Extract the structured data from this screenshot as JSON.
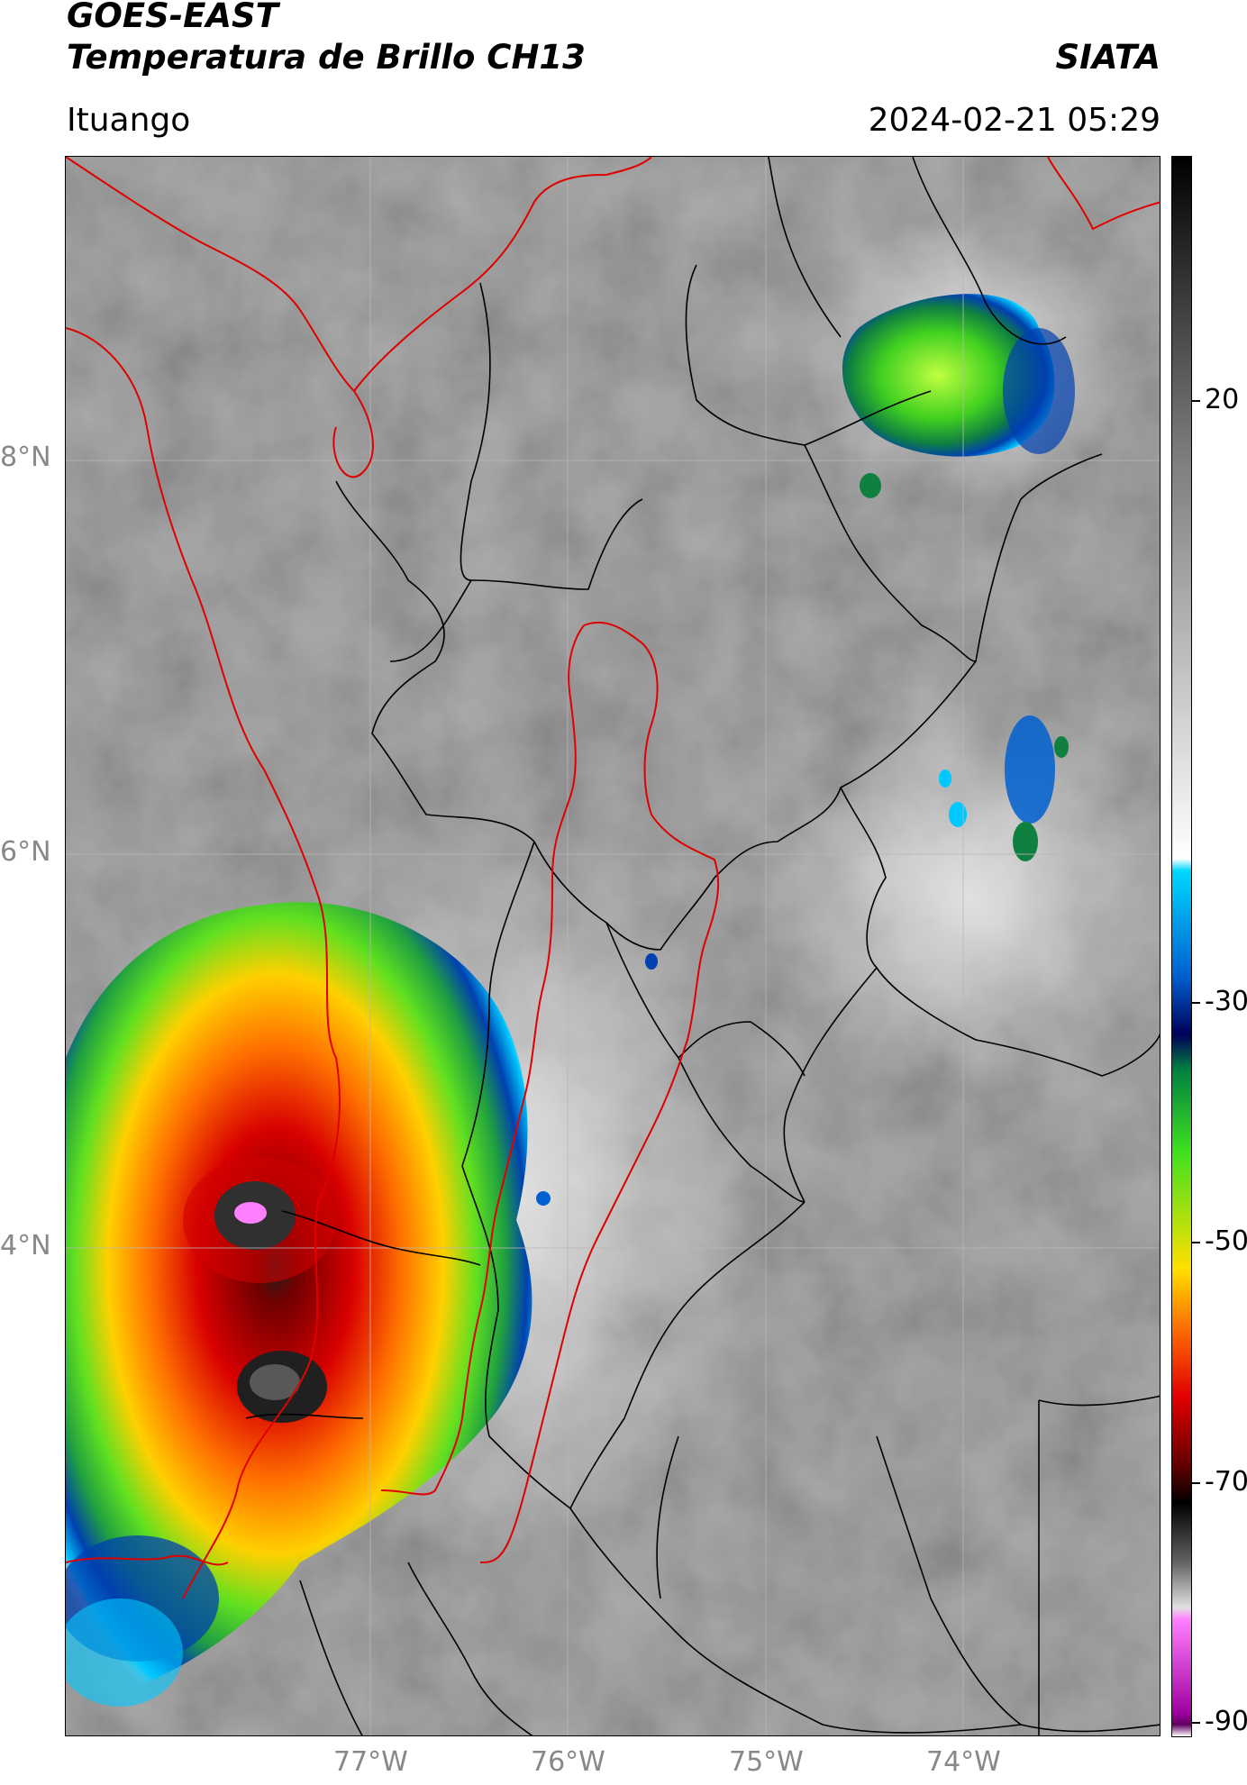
{
  "header": {
    "satellite": "GOES-EAST",
    "product": "Temperatura de Brillo CH13",
    "agency": "SIATA",
    "region": "Ituango",
    "timestamp": "2024-02-21 05:29"
  },
  "map": {
    "lat_labels": [
      "8°N",
      "6°N",
      "4°N"
    ],
    "lon_labels": [
      "77°W",
      "76°W",
      "75°W",
      "74°W"
    ],
    "colors": {
      "background_gray": "#8c8c8c",
      "border_national": "#e00000",
      "border_department": "#000000",
      "gridline": "#b0b0b0"
    }
  },
  "colorbar": {
    "tick_labels": [
      "20",
      "-30",
      "-50",
      "-70",
      "-90"
    ],
    "stops": [
      {
        "value": 45,
        "color": "#000000"
      },
      {
        "value": 20,
        "color": "#7a7a7a"
      },
      {
        "value": -15,
        "color": "#ffffff"
      },
      {
        "value": -16,
        "color": "#00d8ff"
      },
      {
        "value": -25,
        "color": "#0060d0"
      },
      {
        "value": -30,
        "color": "#00005a"
      },
      {
        "value": -33,
        "color": "#008040"
      },
      {
        "value": -40,
        "color": "#40e020"
      },
      {
        "value": -50,
        "color": "#ffe000"
      },
      {
        "value": -55,
        "color": "#ff7000"
      },
      {
        "value": -61,
        "color": "#e00000"
      },
      {
        "value": -67,
        "color": "#600000"
      },
      {
        "value": -70,
        "color": "#000000"
      },
      {
        "value": -75,
        "color": "#606060"
      },
      {
        "value": -79,
        "color": "#e0e0e0"
      },
      {
        "value": -80,
        "color": "#ff80ff"
      },
      {
        "value": -88,
        "color": "#a000a0"
      },
      {
        "value": -89,
        "color": "#600060"
      },
      {
        "value": -90,
        "color": "#ffffff"
      }
    ]
  }
}
